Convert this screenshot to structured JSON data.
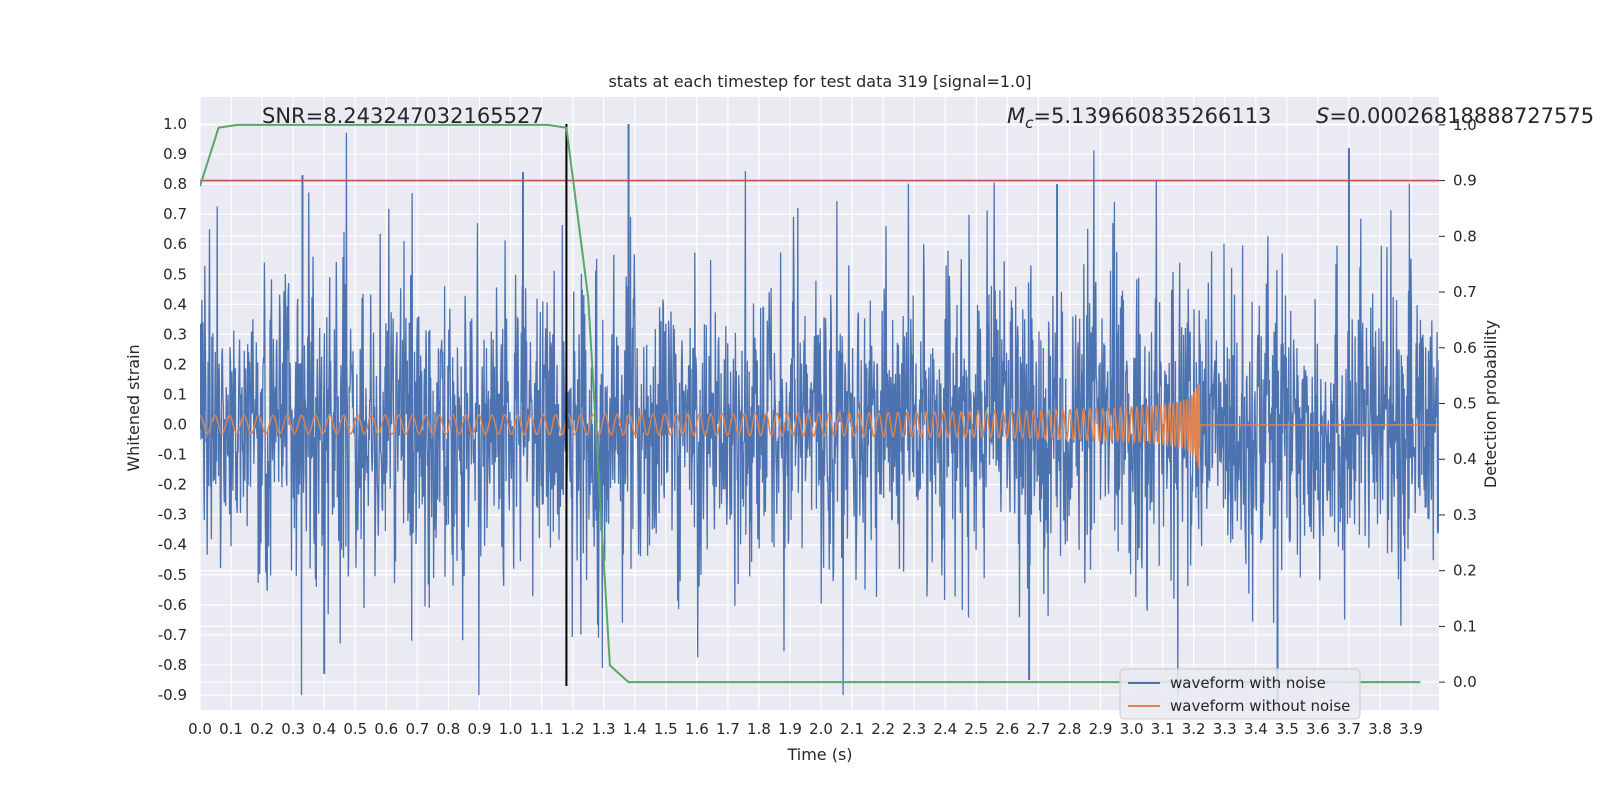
{
  "chart_data": {
    "type": "line",
    "title": "stats at each timestep for test data 319 [signal=1.0]",
    "xlabel": "Time (s)",
    "ylabel": "Whitened strain",
    "y2label": "Detection probability",
    "xlim": [
      0.0,
      3.99
    ],
    "ylim": [
      -0.95,
      1.09
    ],
    "y2lim": [
      -0.05,
      1.05
    ],
    "x_ticks": [
      "0.0",
      "0.1",
      "0.2",
      "0.3",
      "0.4",
      "0.5",
      "0.6",
      "0.7",
      "0.8",
      "0.9",
      "1.0",
      "1.1",
      "1.2",
      "1.3",
      "1.4",
      "1.5",
      "1.6",
      "1.7",
      "1.8",
      "1.9",
      "2.0",
      "2.1",
      "2.2",
      "2.3",
      "2.4",
      "2.5",
      "2.6",
      "2.7",
      "2.8",
      "2.9",
      "3.0",
      "3.1",
      "3.2",
      "3.3",
      "3.4",
      "3.5",
      "3.6",
      "3.7",
      "3.8",
      "3.9"
    ],
    "y_ticks": [
      "1.0",
      "0.9",
      "0.8",
      "0.7",
      "0.6",
      "0.5",
      "0.4",
      "0.3",
      "0.2",
      "0.1",
      "0.0",
      "-0.1",
      "-0.2",
      "-0.3",
      "-0.4",
      "-0.5",
      "-0.6",
      "-0.7",
      "-0.8",
      "-0.9"
    ],
    "y2_ticks": [
      "1.0",
      "0.9",
      "0.8",
      "0.7",
      "0.6",
      "0.5",
      "0.4",
      "0.3",
      "0.2",
      "0.1",
      "0.0"
    ],
    "grid": true,
    "legend_position": "bottom-right",
    "series": [
      {
        "name": "waveform with noise",
        "color": "#4c72b0",
        "description_values": "dense noisy strain series, amplitude roughly -0.85 to 1.0",
        "peaks": [
          {
            "x": 0.33,
            "y": 0.83
          },
          {
            "x": 1.04,
            "y": 0.84
          },
          {
            "x": 1.38,
            "y": 1.0
          },
          {
            "x": 2.76,
            "y": 0.8
          },
          {
            "x": 3.7,
            "y": 0.92
          },
          {
            "x": 0.4,
            "y": -0.83
          },
          {
            "x": 2.67,
            "y": -0.85
          },
          {
            "x": 3.47,
            "y": -0.95
          }
        ]
      },
      {
        "name": "waveform without noise",
        "color": "#dd8452",
        "description_values": "chirp with amplitude ~0.03 rising to ~0.22 at merger near t=3.22 s, then ~0",
        "amplitude_start": 0.03,
        "amplitude_peak": 0.22,
        "merger_time": 3.22
      },
      {
        "name": "",
        "color": "#55a868",
        "axis": "right",
        "x": [
          0.0,
          0.06,
          0.12,
          0.2,
          0.4,
          0.6,
          0.8,
          1.0,
          1.12,
          1.18,
          1.25,
          1.32,
          1.38,
          1.5,
          2.0,
          2.5,
          3.0,
          3.5,
          3.93
        ],
        "values": [
          0.89,
          0.995,
          1.0,
          1.0,
          1.0,
          1.0,
          1.0,
          1.0,
          1.0,
          0.995,
          0.69,
          0.03,
          0.0,
          0.0,
          0.0,
          0.0,
          0.0,
          0.0,
          0.0
        ]
      }
    ],
    "reference_lines": [
      {
        "orientation": "horizontal",
        "axis": "right",
        "value": 0.9,
        "color": "#c44e52"
      },
      {
        "orientation": "vertical",
        "x": 1.18,
        "y_from": -0.87,
        "y_to": 1.0,
        "color": "#000000"
      }
    ],
    "annotations": [
      {
        "text": "SNR=8.243247032165527"
      },
      {
        "symbol": "M",
        "subscript": "c",
        "text": "=5.139660835266113"
      },
      {
        "symbol": "S",
        "text": "=0.00026818888727575"
      }
    ]
  }
}
